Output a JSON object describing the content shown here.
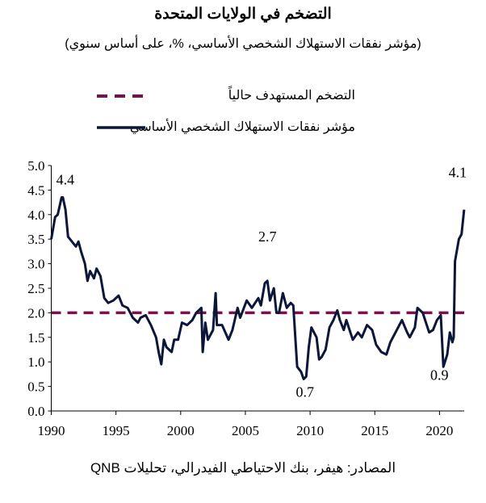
{
  "title": "التضخم في الولايات المتحدة",
  "subtitle": "(مؤشر نفقات الاستهلاك الشخصي الأساسي، %، على أساس سنوي)",
  "source": "المصادر: هيفر، بنك الاحتياطي الفيدرالي، تحليلات QNB",
  "colors": {
    "series": "#0b1638",
    "target": "#7b1050"
  },
  "chart_data": {
    "type": "line",
    "title": "التضخم في الولايات المتحدة",
    "ylim": [
      0,
      5
    ],
    "xlim": [
      1990,
      2022
    ],
    "yticks": [
      "0.0",
      "0.5",
      "1.0",
      "1.5",
      "2.0",
      "2.5",
      "3.0",
      "3.5",
      "4.0",
      "4.5",
      "5.0"
    ],
    "xticks": [
      "1990",
      "1995",
      "2000",
      "2005",
      "2010",
      "2015",
      "2020"
    ],
    "legend": [
      "التضخم المستهدف حالياً",
      "مؤشر نفقات الاستهلاك الشخصي الأساسي"
    ],
    "target": 2.0,
    "annotations": [
      {
        "text": "4.4",
        "x": 1990.9,
        "y": 4.4
      },
      {
        "text": "2.7",
        "x": 2006.7,
        "y": 2.7
      },
      {
        "text": "0.7",
        "x": 2009.6,
        "y": 0.7
      },
      {
        "text": "0.9",
        "x": 2020.3,
        "y": 0.9
      },
      {
        "text": "4.1",
        "x": 2021.9,
        "y": 4.1
      }
    ],
    "series": [
      {
        "name": "مؤشر نفقات الاستهلاك الشخصي الأساسي",
        "points": [
          [
            1990.0,
            3.5
          ],
          [
            1990.3,
            3.95
          ],
          [
            1990.5,
            4.0
          ],
          [
            1990.8,
            4.35
          ],
          [
            1990.9,
            4.35
          ],
          [
            1991.1,
            4.1
          ],
          [
            1991.3,
            3.55
          ],
          [
            1991.6,
            3.45
          ],
          [
            1991.9,
            3.35
          ],
          [
            1992.1,
            3.45
          ],
          [
            1992.3,
            3.25
          ],
          [
            1992.6,
            3.0
          ],
          [
            1992.8,
            2.65
          ],
          [
            1993.0,
            2.85
          ],
          [
            1993.3,
            2.7
          ],
          [
            1993.5,
            2.9
          ],
          [
            1993.8,
            2.75
          ],
          [
            1994.1,
            2.3
          ],
          [
            1994.4,
            2.2
          ],
          [
            1994.8,
            2.25
          ],
          [
            1995.2,
            2.35
          ],
          [
            1995.5,
            2.15
          ],
          [
            1995.9,
            2.1
          ],
          [
            1996.3,
            1.9
          ],
          [
            1996.7,
            1.8
          ],
          [
            1996.9,
            1.9
          ],
          [
            1997.3,
            1.95
          ],
          [
            1997.7,
            1.75
          ],
          [
            1998.1,
            1.5
          ],
          [
            1998.3,
            1.2
          ],
          [
            1998.5,
            0.95
          ],
          [
            1998.7,
            1.45
          ],
          [
            1998.9,
            1.3
          ],
          [
            1999.3,
            1.2
          ],
          [
            1999.5,
            1.45
          ],
          [
            1999.8,
            1.45
          ],
          [
            2000.1,
            1.8
          ],
          [
            2000.5,
            1.75
          ],
          [
            2000.9,
            1.85
          ],
          [
            2001.2,
            2.0
          ],
          [
            2001.6,
            2.1
          ],
          [
            2001.7,
            1.2
          ],
          [
            2001.9,
            1.8
          ],
          [
            2002.1,
            1.45
          ],
          [
            2002.5,
            1.65
          ],
          [
            2002.7,
            2.4
          ],
          [
            2002.8,
            1.75
          ],
          [
            2003.2,
            1.75
          ],
          [
            2003.7,
            1.45
          ],
          [
            2004.0,
            1.65
          ],
          [
            2004.4,
            2.1
          ],
          [
            2004.6,
            1.9
          ],
          [
            2005.1,
            2.25
          ],
          [
            2005.5,
            2.1
          ],
          [
            2006.0,
            2.3
          ],
          [
            2006.2,
            2.15
          ],
          [
            2006.5,
            2.6
          ],
          [
            2006.7,
            2.65
          ],
          [
            2006.9,
            2.25
          ],
          [
            2007.2,
            2.5
          ],
          [
            2007.4,
            2.0
          ],
          [
            2007.6,
            2.0
          ],
          [
            2007.9,
            2.4
          ],
          [
            2008.2,
            2.1
          ],
          [
            2008.5,
            2.2
          ],
          [
            2008.7,
            2.15
          ],
          [
            2009.0,
            0.9
          ],
          [
            2009.3,
            0.8
          ],
          [
            2009.5,
            0.65
          ],
          [
            2009.7,
            0.7
          ],
          [
            2009.9,
            1.3
          ],
          [
            2010.1,
            1.7
          ],
          [
            2010.3,
            1.6
          ],
          [
            2010.5,
            1.5
          ],
          [
            2010.7,
            1.05
          ],
          [
            2010.9,
            1.1
          ],
          [
            2011.2,
            1.25
          ],
          [
            2011.5,
            1.7
          ],
          [
            2011.8,
            1.85
          ],
          [
            2012.1,
            2.05
          ],
          [
            2012.3,
            1.85
          ],
          [
            2012.6,
            1.65
          ],
          [
            2012.8,
            1.85
          ],
          [
            2013.3,
            1.45
          ],
          [
            2013.7,
            1.6
          ],
          [
            2014.0,
            1.5
          ],
          [
            2014.4,
            1.75
          ],
          [
            2014.8,
            1.65
          ],
          [
            2015.1,
            1.35
          ],
          [
            2015.5,
            1.2
          ],
          [
            2015.9,
            1.15
          ],
          [
            2016.2,
            1.4
          ],
          [
            2016.7,
            1.65
          ],
          [
            2017.1,
            1.85
          ],
          [
            2017.5,
            1.6
          ],
          [
            2017.7,
            1.5
          ],
          [
            2018.1,
            1.7
          ],
          [
            2018.3,
            2.1
          ],
          [
            2018.7,
            2.0
          ],
          [
            2019.2,
            1.6
          ],
          [
            2019.5,
            1.65
          ],
          [
            2019.8,
            1.85
          ],
          [
            2020.1,
            1.95
          ],
          [
            2020.3,
            0.9
          ],
          [
            2020.6,
            1.15
          ],
          [
            2020.8,
            1.6
          ],
          [
            2021.0,
            1.4
          ],
          [
            2021.1,
            1.5
          ],
          [
            2021.2,
            3.05
          ],
          [
            2021.5,
            3.5
          ],
          [
            2021.7,
            3.6
          ],
          [
            2021.9,
            4.1
          ]
        ]
      }
    ]
  }
}
